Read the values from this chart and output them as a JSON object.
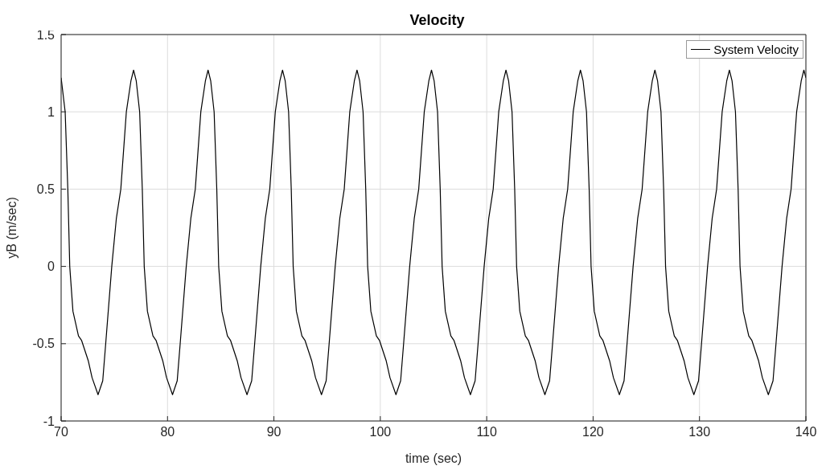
{
  "chart_data": {
    "type": "line",
    "title": "Velocity",
    "xlabel": "time (sec)",
    "ylabel": "yB (m/sec)",
    "x": [
      70,
      70.38,
      70.63,
      70.81,
      71.11,
      71.63,
      71.93,
      72.55,
      72.91,
      73.47,
      73.91,
      74.19,
      74.76,
      75.19,
      75.61,
      76.13,
      76.56,
      76.81,
      77.06,
      77.38,
      77.63,
      77.81,
      78.11,
      78.63,
      78.93,
      79.55,
      79.91,
      80.47,
      80.91,
      81.19,
      81.76,
      82.19,
      82.61,
      83.13,
      83.56,
      83.81,
      84.06,
      84.38,
      84.63,
      84.81,
      85.11,
      85.63,
      85.93,
      86.55,
      86.91,
      87.47,
      87.91,
      88.19,
      88.76,
      89.19,
      89.61,
      90.13,
      90.56,
      90.81,
      91.06,
      91.38,
      91.63,
      91.81,
      92.11,
      92.63,
      92.93,
      93.55,
      93.91,
      94.47,
      94.91,
      95.19,
      95.76,
      96.19,
      96.61,
      97.13,
      97.56,
      97.81,
      98.06,
      98.38,
      98.63,
      98.81,
      99.11,
      99.63,
      99.93,
      100.55,
      100.91,
      101.47,
      101.91,
      102.19,
      102.76,
      103.19,
      103.61,
      104.13,
      104.56,
      104.81,
      105.06,
      105.38,
      105.63,
      105.81,
      106.11,
      106.63,
      106.93,
      107.55,
      107.91,
      108.47,
      108.91,
      109.19,
      109.76,
      110.19,
      110.61,
      111.13,
      111.56,
      111.81,
      112.06,
      112.38,
      112.63,
      112.81,
      113.11,
      113.63,
      113.93,
      114.55,
      114.91,
      115.47,
      115.91,
      116.19,
      116.76,
      117.19,
      117.61,
      118.13,
      118.56,
      118.81,
      119.06,
      119.38,
      119.63,
      119.81,
      120.11,
      120.63,
      120.93,
      121.55,
      121.91,
      122.47,
      122.91,
      123.19,
      123.76,
      124.19,
      124.61,
      125.13,
      125.56,
      125.81,
      126.06,
      126.38,
      126.63,
      126.81,
      127.11,
      127.63,
      127.93,
      128.55,
      128.91,
      129.47,
      129.91,
      130.19,
      130.76,
      131.19,
      131.61,
      132.13,
      132.56,
      132.81,
      133.06,
      133.38,
      133.63,
      133.81,
      134.11,
      134.63,
      134.93,
      135.55,
      135.91,
      136.47,
      136.91,
      137.19,
      137.76,
      138.19,
      138.61,
      139.13,
      139.56,
      139.81,
      140
    ],
    "series": [
      {
        "name": "System Velocity",
        "color": "#000000",
        "values": [
          1.22,
          1,
          0.5,
          0,
          -0.29,
          -0.45,
          -0.48,
          -0.61,
          -0.72,
          -0.83,
          -0.74,
          -0.5,
          0,
          0.31,
          0.5,
          1,
          1.2,
          1.27,
          1.2,
          1,
          0.5,
          0,
          -0.29,
          -0.45,
          -0.48,
          -0.61,
          -0.72,
          -0.83,
          -0.74,
          -0.5,
          0,
          0.31,
          0.5,
          1,
          1.2,
          1.27,
          1.2,
          1,
          0.5,
          0,
          -0.29,
          -0.45,
          -0.48,
          -0.61,
          -0.72,
          -0.83,
          -0.74,
          -0.5,
          0,
          0.31,
          0.5,
          1,
          1.2,
          1.27,
          1.2,
          1,
          0.5,
          0,
          -0.29,
          -0.45,
          -0.48,
          -0.61,
          -0.72,
          -0.83,
          -0.74,
          -0.5,
          0,
          0.31,
          0.5,
          1,
          1.2,
          1.27,
          1.2,
          1,
          0.5,
          0,
          -0.29,
          -0.45,
          -0.48,
          -0.61,
          -0.72,
          -0.83,
          -0.74,
          -0.5,
          0,
          0.31,
          0.5,
          1,
          1.2,
          1.27,
          1.2,
          1,
          0.5,
          0,
          -0.29,
          -0.45,
          -0.48,
          -0.61,
          -0.72,
          -0.83,
          -0.74,
          -0.5,
          0,
          0.31,
          0.5,
          1,
          1.2,
          1.27,
          1.2,
          1,
          0.5,
          0,
          -0.29,
          -0.45,
          -0.48,
          -0.61,
          -0.72,
          -0.83,
          -0.74,
          -0.5,
          0,
          0.31,
          0.5,
          1,
          1.2,
          1.27,
          1.2,
          1,
          0.5,
          0,
          -0.29,
          -0.45,
          -0.48,
          -0.61,
          -0.72,
          -0.83,
          -0.74,
          -0.5,
          0,
          0.31,
          0.5,
          1,
          1.2,
          1.27,
          1.2,
          1,
          0.5,
          0,
          -0.29,
          -0.45,
          -0.48,
          -0.61,
          -0.72,
          -0.83,
          -0.74,
          -0.5,
          0,
          0.31,
          0.5,
          1,
          1.2,
          1.27,
          1.2,
          1,
          0.5,
          0,
          -0.29,
          -0.45,
          -0.48,
          -0.61,
          -0.72,
          -0.83,
          -0.74,
          -0.5,
          0,
          0.31,
          0.5,
          1,
          1.2,
          1.27,
          1.22
        ]
      }
    ],
    "xlim": [
      70,
      140
    ],
    "xticks": [
      70,
      80,
      90,
      100,
      110,
      120,
      130,
      140
    ],
    "ylim": [
      -1,
      1.5
    ],
    "yticks": [
      -1,
      -0.5,
      0,
      0.5,
      1,
      1.5
    ],
    "grid": true,
    "legend": "top right",
    "marker": "none",
    "line_style": "solid"
  }
}
